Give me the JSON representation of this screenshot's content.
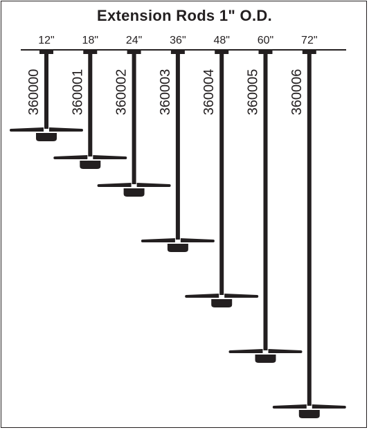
{
  "title": "Extension Rods 1\" O.D.",
  "colors": {
    "ink": "#231f20",
    "background": "#ffffff"
  },
  "rods": [
    {
      "length_label": "12\"",
      "part_number": "360000",
      "length_in": 12
    },
    {
      "length_label": "18\"",
      "part_number": "360001",
      "length_in": 18
    },
    {
      "length_label": "24\"",
      "part_number": "360002",
      "length_in": 24
    },
    {
      "length_label": "36\"",
      "part_number": "360003",
      "length_in": 36
    },
    {
      "length_label": "48\"",
      "part_number": "360004",
      "length_in": 48
    },
    {
      "length_label": "60\"",
      "part_number": "360005",
      "length_in": 60
    },
    {
      "length_label": "72\"",
      "part_number": "360006",
      "length_in": 72
    }
  ]
}
